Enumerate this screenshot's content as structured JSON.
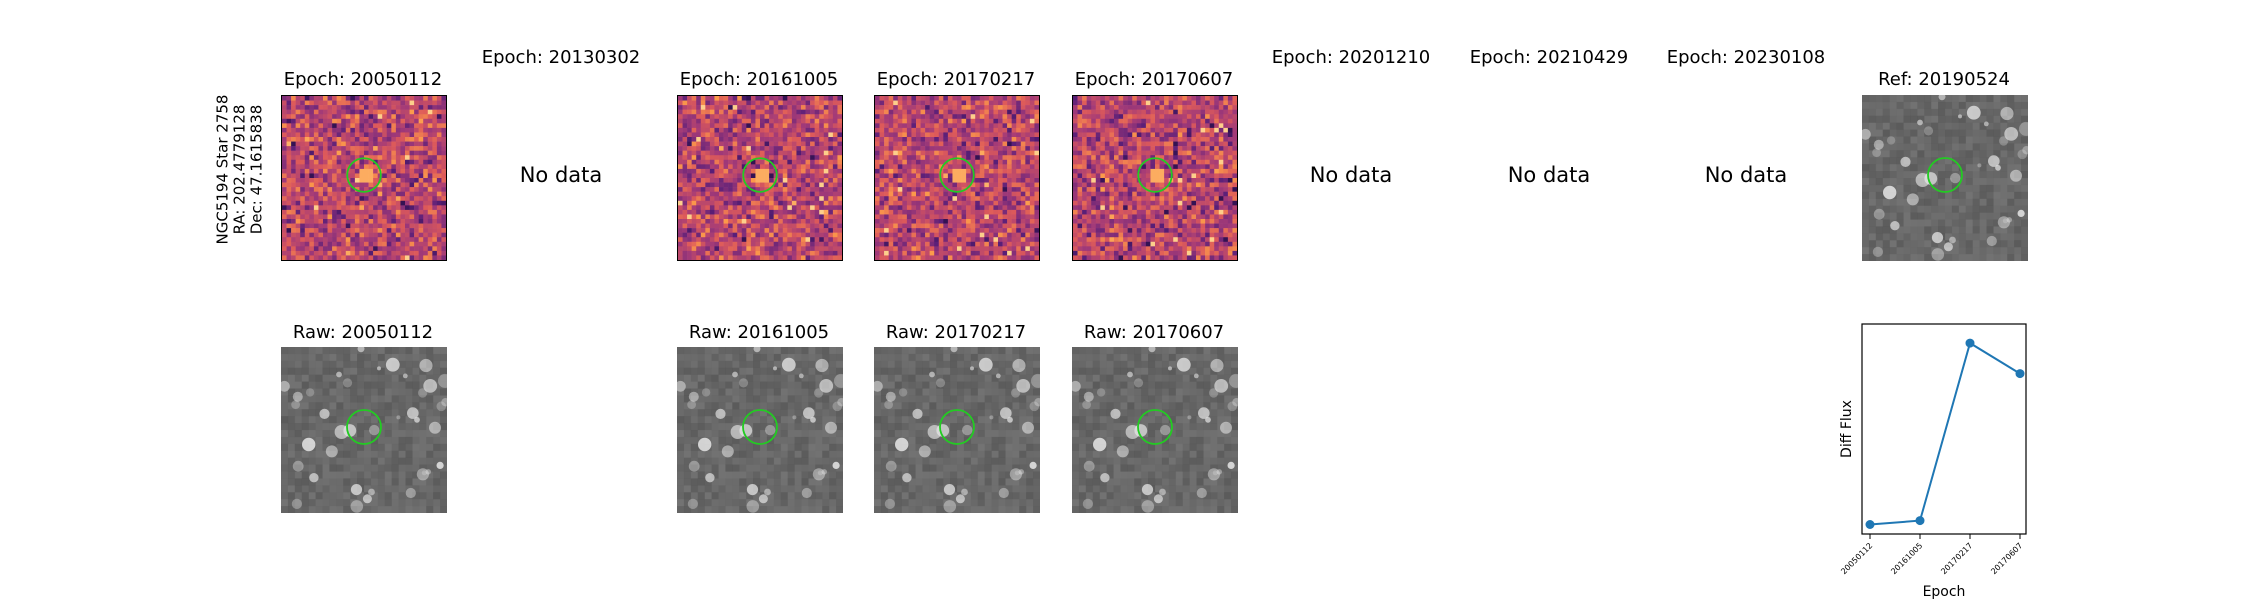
{
  "star_label": {
    "line1": "NGC5194 Star 2758",
    "line2": "RA: 202.4779128",
    "line3": "Dec: 47.1615838"
  },
  "columns": [
    {
      "title": "Epoch: 20050112",
      "raw_title": "Raw: 20050112",
      "has_data": true
    },
    {
      "title": "Epoch: 20130302",
      "raw_title": "",
      "has_data": false,
      "no_data_text": "No data"
    },
    {
      "title": "Epoch: 20161005",
      "raw_title": "Raw: 20161005",
      "has_data": true
    },
    {
      "title": "Epoch: 20170217",
      "raw_title": "Raw: 20170217",
      "has_data": true
    },
    {
      "title": "Epoch: 20170607",
      "raw_title": "Raw: 20170607",
      "has_data": true
    },
    {
      "title": "Epoch: 20201210",
      "raw_title": "",
      "has_data": false,
      "no_data_text": "No data"
    },
    {
      "title": "Epoch: 20210429",
      "raw_title": "",
      "has_data": false,
      "no_data_text": "No data"
    },
    {
      "title": "Epoch: 20230108",
      "raw_title": "",
      "has_data": false,
      "no_data_text": "No data"
    }
  ],
  "reference": {
    "title": "Ref: 20190524"
  },
  "colors": {
    "aperture": "#22cc22",
    "series": "#1f77b4",
    "diff_cmap": [
      "#1a0a3a",
      "#5a1f78",
      "#a23a78",
      "#dd5a5a",
      "#fc9a4a",
      "#fde0a0"
    ]
  },
  "chart_data": {
    "type": "line",
    "xlabel": "Epoch",
    "ylabel": "Diff Flux",
    "categories": [
      "20050112",
      "20161005",
      "20170217",
      "20170607"
    ],
    "series": [
      {
        "values": [
          0.05,
          0.07,
          1.0,
          0.84
        ]
      }
    ],
    "ylim": [
      0.0,
      1.1
    ],
    "ytick_labels_shown": false,
    "grid": false
  }
}
